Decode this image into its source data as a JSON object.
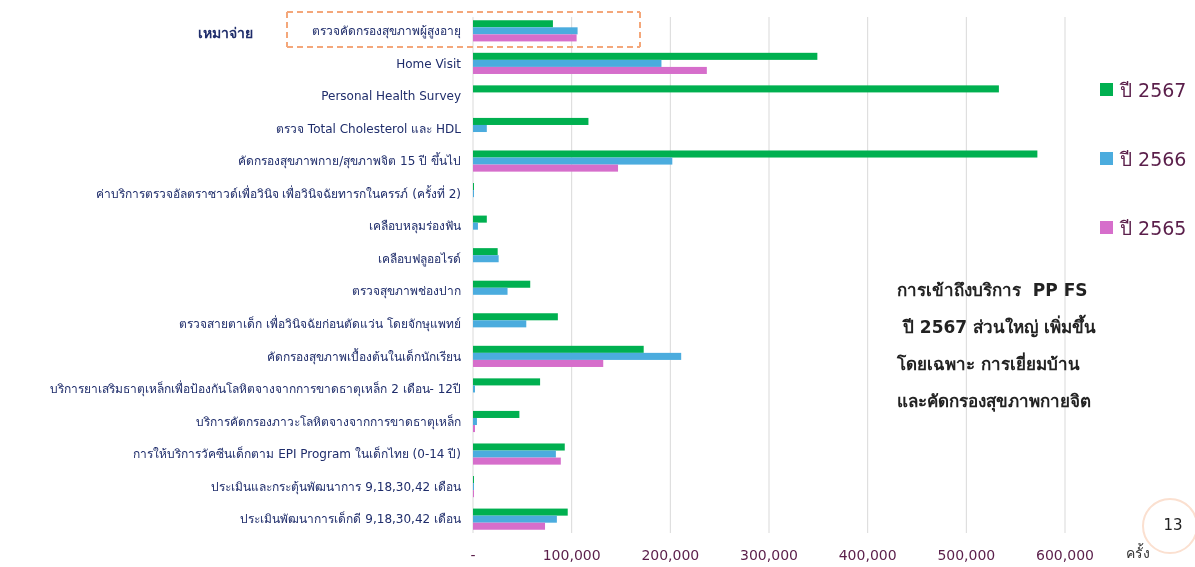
{
  "chart_data": {
    "type": "bar",
    "orientation": "horizontal",
    "xlabel": "ครั้ง",
    "categories": [
      "ตรวจคัดกรองสุขภาพผู้สูงอายุ",
      "Home Visit",
      "Personal Health Survey",
      "ตรวจ Total Cholesterol และ HDL",
      "คัดกรองสุขภาพกาย/สุขภาพจิต 15 ปี ขึ้นไป",
      "ค่าบริการตรวจอัลตราซาวด์เพื่อวินิจ เพื่อวินิจฉัยทารกในครรภ์ (ครั้งที่ 2)",
      "เคลือบหลุมร่องฟัน",
      "เคลือบฟลูออไรด์",
      "ตรวจสุขภาพช่องปาก",
      "ตรวจสายตาเด็ก เพื่อวินิจฉัยก่อนตัดแว่น โดยจักษุแพทย์",
      "คัดกรองสุขภาพเบื้องต้นในเด็กนักเรียน",
      "บริการยาเสริมธาตุเหล็กเพื่อป้องกันโลหิตจางจากการขาดธาตุเหล็ก 2 เดือน- 12ปี",
      "บริการคัดกรองภาวะโลหิตจางจากการขาดธาตุเหล็ก",
      "การให้บริการวัคซีนเด็กตาม EPI Program ในเด็กไทย (0-14 ปี)",
      "ประเมินและกระตุ้นพัฒนาการ 9,18,30,42 เดือน",
      "ประเมินพัฒนาการเด็กดี 9,18,30,42 เดือน"
    ],
    "series": [
      {
        "name": "ปี 2567",
        "color": "#00b050",
        "values": [
          81000,
          349000,
          533000,
          117000,
          572000,
          1000,
          14000,
          25000,
          58000,
          86000,
          173000,
          68000,
          47000,
          93000,
          1000,
          96000
        ]
      },
      {
        "name": "ปี 2566",
        "color": "#4bacde",
        "values": [
          106000,
          191000,
          null,
          14000,
          202000,
          1000,
          5000,
          26000,
          35000,
          54000,
          211000,
          2000,
          4000,
          84000,
          1000,
          85000
        ]
      },
      {
        "name": "ปี 2565",
        "color": "#d66ecb",
        "values": [
          105000,
          237000,
          null,
          null,
          147000,
          null,
          null,
          null,
          null,
          null,
          132000,
          null,
          2000,
          89000,
          1000,
          73000
        ]
      }
    ],
    "xlim": [
      0,
      600000
    ],
    "xticks": [
      {
        "value": 0,
        "label": "-"
      },
      {
        "value": 100000,
        "label": "100,000"
      },
      {
        "value": 200000,
        "label": "200,000"
      },
      {
        "value": 300000,
        "label": "300,000"
      },
      {
        "value": 400000,
        "label": "400,000"
      },
      {
        "value": 500000,
        "label": "500,000"
      },
      {
        "value": 600000,
        "label": "600,000"
      }
    ],
    "grid": "x",
    "legend": "right",
    "annotations": [
      "เหมาจ่าย",
      "การเข้าถึงบริการ  PP FS\n ปี 2567 ส่วนใหญ่ เพิ่มขึ้น\nโดยเฉพาะ การเยี่ยมบ้าน\nและคัดกรองสุขภาพกายจิต",
      "13"
    ]
  }
}
